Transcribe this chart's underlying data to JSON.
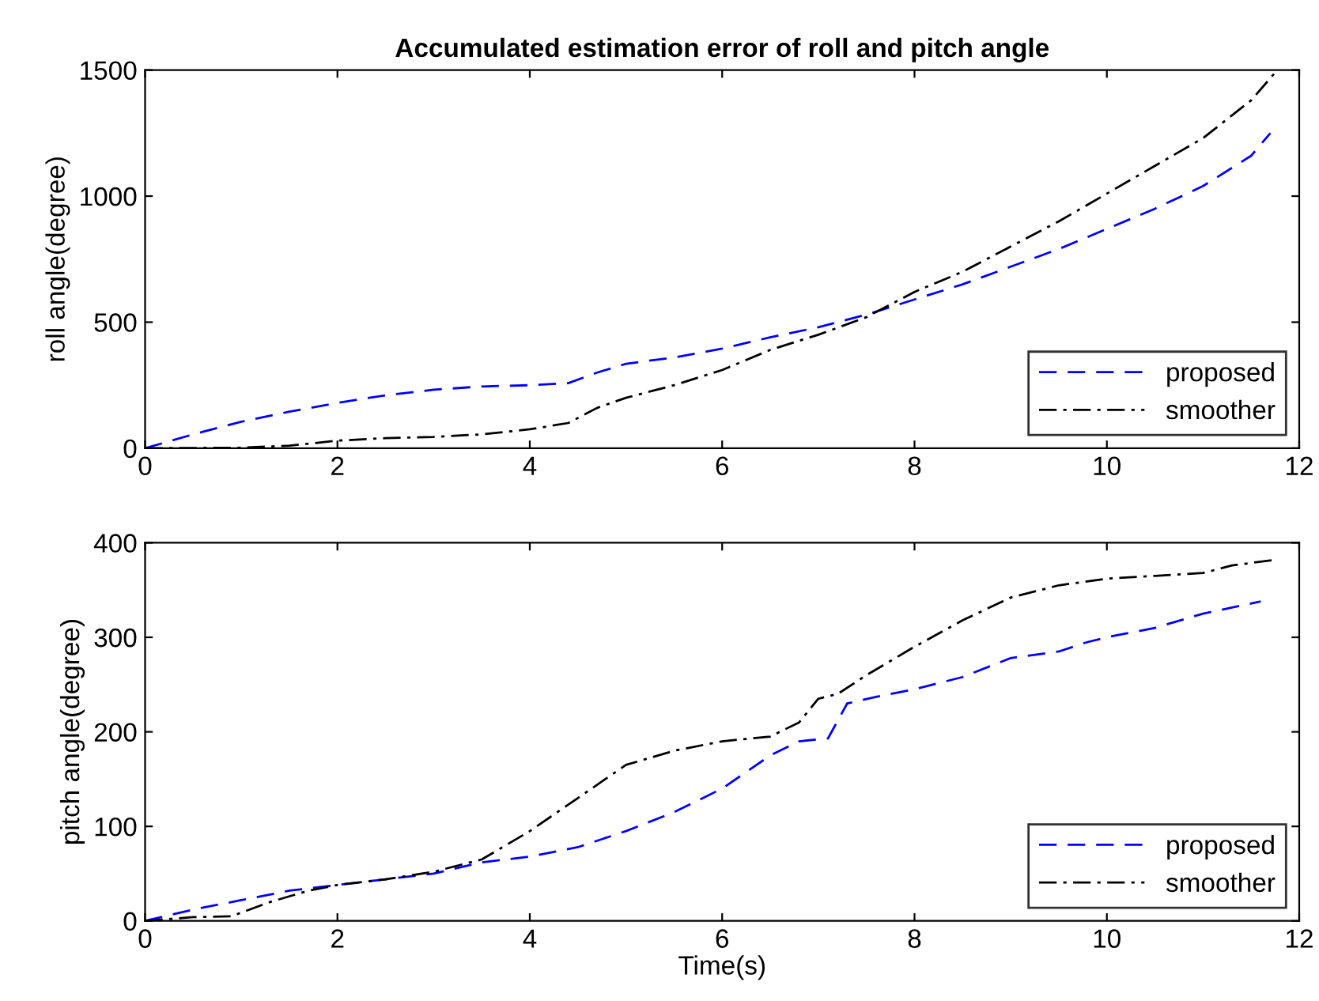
{
  "chart_data": [
    {
      "type": "line",
      "title": "Accumulated estimation error of roll and pitch angle",
      "ylabel": "roll angle(degree)",
      "xlim": [
        0,
        12
      ],
      "xticks": [
        0,
        2,
        4,
        6,
        8,
        10,
        12
      ],
      "ylim": [
        0,
        1500
      ],
      "yticks": [
        0,
        500,
        1000,
        1500
      ],
      "legend": "bottom right",
      "grid": false,
      "series": [
        {
          "name": "proposed",
          "color": "#0000ff",
          "line_style": "dashed",
          "x": [
            0,
            0.5,
            1,
            1.5,
            2,
            2.5,
            3,
            3.5,
            4,
            4.4,
            4.7,
            5,
            5.5,
            6,
            6.5,
            7,
            7.5,
            8,
            8.5,
            9,
            9.5,
            10,
            10.5,
            11,
            11.5,
            11.7
          ],
          "values": [
            0,
            55,
            105,
            145,
            180,
            210,
            232,
            245,
            250,
            258,
            300,
            335,
            360,
            395,
            440,
            480,
            530,
            590,
            650,
            720,
            790,
            870,
            950,
            1040,
            1160,
            1250
          ]
        },
        {
          "name": "smoother",
          "color": "#000000",
          "line_style": "dashdot",
          "x": [
            0,
            1,
            1.5,
            2,
            2.5,
            3,
            3.5,
            4,
            4.4,
            4.7,
            5,
            5.5,
            6,
            6.5,
            7,
            7.5,
            7.8,
            8,
            8.5,
            9,
            9.5,
            10,
            10.5,
            11,
            11.5,
            11.75
          ],
          "values": [
            0,
            2,
            10,
            30,
            40,
            45,
            55,
            75,
            100,
            160,
            200,
            250,
            310,
            390,
            450,
            520,
            580,
            620,
            700,
            800,
            900,
            1010,
            1120,
            1230,
            1380,
            1490
          ]
        }
      ]
    },
    {
      "type": "line",
      "xlabel": "Time(s)",
      "ylabel": "pitch angle(degree)",
      "xlim": [
        0,
        12
      ],
      "xticks": [
        0,
        2,
        4,
        6,
        8,
        10,
        12
      ],
      "ylim": [
        0,
        400
      ],
      "yticks": [
        0,
        100,
        200,
        300,
        400
      ],
      "legend": "bottom right",
      "grid": false,
      "series": [
        {
          "name": "proposed",
          "color": "#0000ff",
          "line_style": "dashed",
          "x": [
            0,
            0.5,
            1,
            1.5,
            2,
            2.5,
            3,
            3.5,
            4,
            4.5,
            5,
            5.5,
            6,
            6.5,
            6.8,
            7.1,
            7.3,
            7.6,
            8,
            8.5,
            9,
            9.5,
            9.8,
            10,
            10.5,
            11,
            11.6
          ],
          "values": [
            0,
            12,
            22,
            32,
            38,
            44,
            50,
            62,
            68,
            78,
            95,
            115,
            140,
            175,
            190,
            193,
            230,
            237,
            245,
            258,
            278,
            285,
            295,
            300,
            310,
            325,
            338
          ]
        },
        {
          "name": "smoother",
          "color": "#000000",
          "line_style": "dashdot",
          "x": [
            0,
            0.5,
            0.9,
            1.3,
            1.7,
            2,
            2.5,
            3,
            3.5,
            4,
            4.5,
            5,
            5.5,
            6,
            6.5,
            6.8,
            7,
            7.2,
            7.5,
            8,
            8.5,
            9,
            9.5,
            10,
            10.5,
            11,
            11.3,
            11.75
          ],
          "values": [
            0,
            4,
            5,
            20,
            32,
            38,
            44,
            52,
            65,
            95,
            130,
            165,
            180,
            190,
            195,
            210,
            235,
            240,
            260,
            290,
            318,
            342,
            355,
            362,
            365,
            368,
            376,
            382
          ]
        }
      ]
    }
  ]
}
